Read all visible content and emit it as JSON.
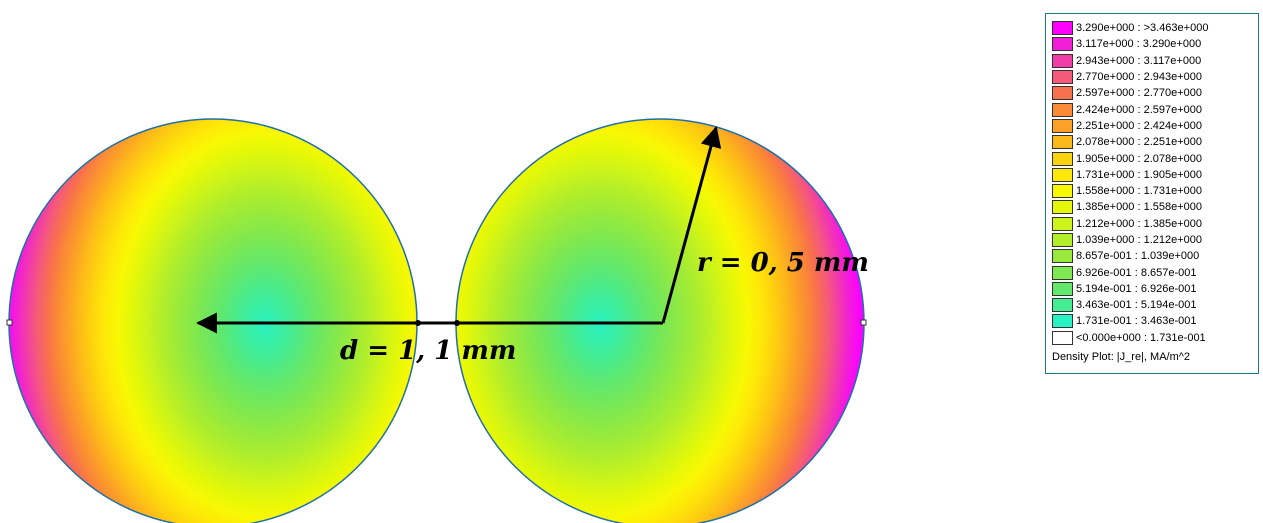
{
  "annotations": {
    "diameter_label": "d = 1, 1 mm",
    "radius_label": "r = 0, 5 mm"
  },
  "legend": {
    "caption": "Density Plot: |J_re|, MA/m^2",
    "rows": [
      {
        "label": "3.290e+000 : >3.463e+000",
        "color": "#ff00ff"
      },
      {
        "label": "3.117e+000 : 3.290e+000",
        "color": "#f21ed8"
      },
      {
        "label": "2.943e+000 : 3.117e+000",
        "color": "#f23ca8"
      },
      {
        "label": "2.770e+000 : 2.943e+000",
        "color": "#f55a7a"
      },
      {
        "label": "2.597e+000 : 2.770e+000",
        "color": "#f8704e"
      },
      {
        "label": "2.424e+000 : 2.597e+000",
        "color": "#fa8a36"
      },
      {
        "label": "2.251e+000 : 2.424e+000",
        "color": "#fca027"
      },
      {
        "label": "2.078e+000 : 2.251e+000",
        "color": "#fdb81a"
      },
      {
        "label": "1.905e+000 : 2.078e+000",
        "color": "#fdd20e"
      },
      {
        "label": "1.731e+000 : 1.905e+000",
        "color": "#fee808"
      },
      {
        "label": "1.558e+000 : 1.731e+000",
        "color": "#f8f804"
      },
      {
        "label": "1.385e+000 : 1.558e+000",
        "color": "#e4f808"
      },
      {
        "label": "1.212e+000 : 1.385e+000",
        "color": "#ccf41a"
      },
      {
        "label": "1.039e+000 : 1.212e+000",
        "color": "#b2ee2a"
      },
      {
        "label": "8.657e-001 : 1.039e+000",
        "color": "#98ea3c"
      },
      {
        "label": "6.926e-001 : 8.657e-001",
        "color": "#7ee850"
      },
      {
        "label": "5.194e-001 : 6.926e-001",
        "color": "#62e86c"
      },
      {
        "label": "3.463e-001 : 5.194e-001",
        "color": "#44ec92"
      },
      {
        "label": "1.731e-001 : 3.463e-001",
        "color": "#28f2c0"
      },
      {
        "label": "<0.000e+000 : 1.731e-001",
        "color": "#ffffff"
      }
    ]
  }
}
